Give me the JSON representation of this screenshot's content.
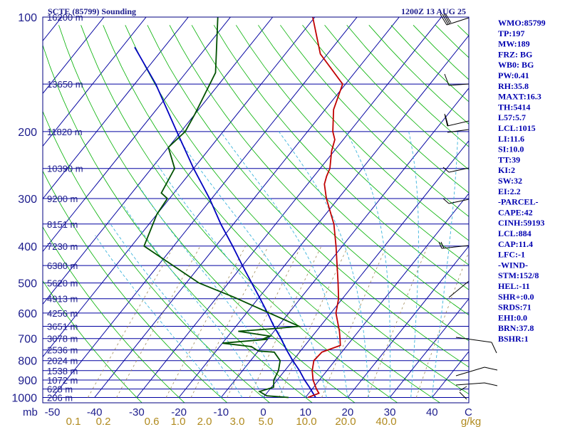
{
  "chart_data": {
    "type": "skew-t",
    "title": "SCTE (85799) Sounding",
    "valid_time": "1200Z 13 AUG 25",
    "xlabel": "mb",
    "pressure_ticks": [
      "100",
      "200",
      "300",
      "400",
      "500",
      "600",
      "700",
      "800",
      "900",
      "1000"
    ],
    "temperature_ticks": [
      "-50",
      "-40",
      "-30",
      "-20",
      "-10",
      "0",
      "10",
      "20",
      "30",
      "40"
    ],
    "temperature_end_label": "C",
    "mixing_ratio_ticks": [
      "0.1",
      "0.2",
      "0.6",
      "1.0",
      "2.0",
      "3.0",
      "5.0",
      "10.0",
      "20.0",
      "40.0"
    ],
    "mixing_ratio_unit": "g/kg",
    "height_labels": [
      {
        "p": 100,
        "h": "16200 m"
      },
      {
        "p": 150,
        "h": "13650 m"
      },
      {
        "p": 200,
        "h": "11820 m"
      },
      {
        "p": 250,
        "h": "10390 m"
      },
      {
        "p": 300,
        "h": "9200 m"
      },
      {
        "p": 350,
        "h": "8151 m"
      },
      {
        "p": 400,
        "h": "7230 m"
      },
      {
        "p": 450,
        "h": "6380 m"
      },
      {
        "p": 500,
        "h": "5620 m"
      },
      {
        "p": 550,
        "h": "4913 m"
      },
      {
        "p": 600,
        "h": "4256 m"
      },
      {
        "p": 650,
        "h": "3651 m"
      },
      {
        "p": 700,
        "h": "3078 m"
      },
      {
        "p": 750,
        "h": "2536 m"
      },
      {
        "p": 800,
        "h": "2024 m"
      },
      {
        "p": 850,
        "h": "1538 m"
      },
      {
        "p": 900,
        "h": "1072 m"
      },
      {
        "p": 950,
        "h": "628 m"
      },
      {
        "p": 1000,
        "h": "206 m"
      }
    ],
    "temperature_profile": [
      {
        "p": 1000,
        "t": 10.6
      },
      {
        "p": 975,
        "t": 12.4
      },
      {
        "p": 950,
        "t": 11.0
      },
      {
        "p": 900,
        "t": 8.5
      },
      {
        "p": 850,
        "t": 6.5
      },
      {
        "p": 800,
        "t": 5.0
      },
      {
        "p": 760,
        "t": 5.3
      },
      {
        "p": 730,
        "t": 8.4
      },
      {
        "p": 700,
        "t": 7.0
      },
      {
        "p": 670,
        "t": 5.5
      },
      {
        "p": 600,
        "t": 1.2
      },
      {
        "p": 550,
        "t": -0.9
      },
      {
        "p": 500,
        "t": -4.0
      },
      {
        "p": 400,
        "t": -11.5
      },
      {
        "p": 350,
        "t": -16.2
      },
      {
        "p": 300,
        "t": -22.8
      },
      {
        "p": 275,
        "t": -26.0
      },
      {
        "p": 262,
        "t": -27.0
      },
      {
        "p": 250,
        "t": -27.7
      },
      {
        "p": 225,
        "t": -30.6
      },
      {
        "p": 210,
        "t": -32.0
      },
      {
        "p": 200,
        "t": -34.0
      },
      {
        "p": 175,
        "t": -38.0
      },
      {
        "p": 150,
        "t": -40.7
      },
      {
        "p": 125,
        "t": -51.7
      },
      {
        "p": 100,
        "t": -60.5
      }
    ],
    "dewpoint_profile": [
      {
        "p": 1000,
        "t": 6.0
      },
      {
        "p": 990,
        "t": 0.5
      },
      {
        "p": 965,
        "t": -2.0
      },
      {
        "p": 940,
        "t": 0.5
      },
      {
        "p": 900,
        "t": -0.8
      },
      {
        "p": 850,
        "t": -1.5
      },
      {
        "p": 800,
        "t": -3.0
      },
      {
        "p": 760,
        "t": -6.0
      },
      {
        "p": 755,
        "t": -10.0
      },
      {
        "p": 735,
        "t": -12.5
      },
      {
        "p": 720,
        "t": -20.0
      },
      {
        "p": 703,
        "t": -10.0
      },
      {
        "p": 700,
        "t": -11.0
      },
      {
        "p": 690,
        "t": -10.0
      },
      {
        "p": 670,
        "t": -18.5
      },
      {
        "p": 660,
        "t": -11.0
      },
      {
        "p": 650,
        "t": -5.0
      },
      {
        "p": 545,
        "t": -26.0
      },
      {
        "p": 500,
        "t": -37.0
      },
      {
        "p": 400,
        "t": -57.0
      },
      {
        "p": 330,
        "t": -60.0
      },
      {
        "p": 300,
        "t": -60.5
      },
      {
        "p": 290,
        "t": -63.0
      },
      {
        "p": 250,
        "t": -64.5
      },
      {
        "p": 220,
        "t": -70.0
      },
      {
        "p": 200,
        "t": -69.0
      },
      {
        "p": 180,
        "t": -70.0
      },
      {
        "p": 140,
        "t": -73.0
      },
      {
        "p": 100,
        "t": -83.0
      }
    ],
    "parcel_profile": [
      {
        "p": 1000,
        "t": 12.4
      },
      {
        "p": 940,
        "t": 9.0
      },
      {
        "p": 900,
        "t": 6.5
      },
      {
        "p": 850,
        "t": 3.5
      },
      {
        "p": 800,
        "t": 0.0
      },
      {
        "p": 750,
        "t": -3.5
      },
      {
        "p": 700,
        "t": -7.0
      },
      {
        "p": 650,
        "t": -11.0
      },
      {
        "p": 600,
        "t": -15.0
      },
      {
        "p": 550,
        "t": -19.5
      },
      {
        "p": 500,
        "t": -24.5
      },
      {
        "p": 450,
        "t": -30.0
      },
      {
        "p": 400,
        "t": -36.0
      },
      {
        "p": 350,
        "t": -43.0
      },
      {
        "p": 300,
        "t": -50.5
      },
      {
        "p": 250,
        "t": -60.0
      },
      {
        "p": 200,
        "t": -71.0
      },
      {
        "p": 150,
        "t": -85.0
      },
      {
        "p": 120,
        "t": -97.0
      }
    ],
    "indices": [
      "WMO:85799",
      "TP:197",
      "MW:189",
      "FRZ: BG",
      "WB0: BG",
      "PW:0.41",
      "RH:35.8",
      "MAXT:16.3",
      "TH:5414",
      "L57:5.7",
      "LCL:1015",
      "LI:11.6",
      "SI:10.0",
      "TT:39",
      "KI:2",
      "SW:32",
      "EI:2.2",
      "-PARCEL-",
      "CAPE:42",
      "CINH:59193",
      "LCL:884",
      "CAP:11.4",
      "LFC:-1",
      "-WIND-",
      "STM:152/8",
      "HEL:-11",
      "SHR+:0.0",
      "SRDS:71",
      "EHI:0.0",
      "BRN:37.8",
      "BSHR:1"
    ],
    "colors": {
      "frame": "#000080",
      "isobar": "#0000a0",
      "isotherm": "#0000a0",
      "dry_adiabat": "#00b000",
      "moist_adiabat": "#3cb4dc",
      "mixing_ratio": "#a08c5a",
      "temperature": "#c00000",
      "dewpoint": "#005000",
      "parcel": "#0000c0",
      "wind_barb": "#000000",
      "mixing_label": "#b08a1e"
    }
  }
}
